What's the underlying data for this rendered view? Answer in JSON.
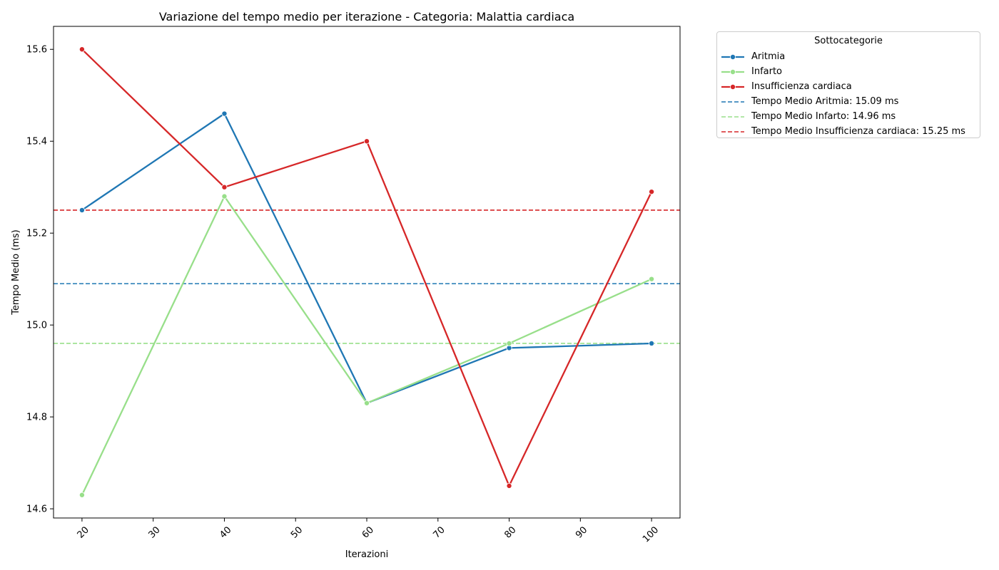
{
  "chart_data": {
    "type": "line",
    "title": "Variazione del tempo medio per iterazione - Categoria: Malattia cardiaca",
    "xlabel": "Iterazioni",
    "ylabel": "Tempo Medio (ms)",
    "xlim": [
      16,
      104
    ],
    "ylim": [
      14.58,
      15.65
    ],
    "xticks": [
      20,
      30,
      40,
      50,
      60,
      70,
      80,
      90,
      100
    ],
    "yticks": [
      14.6,
      14.8,
      15.0,
      15.2,
      15.4,
      15.6
    ],
    "ytick_labels": [
      "14.6",
      "14.8",
      "15.0",
      "15.2",
      "15.4",
      "15.6"
    ],
    "x": [
      20,
      40,
      60,
      80,
      100
    ],
    "series": [
      {
        "name": "Aritmia",
        "color": "#1f77b4",
        "values": [
          15.25,
          15.46,
          14.83,
          14.95,
          14.96
        ]
      },
      {
        "name": "Infarto",
        "color": "#98df8a",
        "values": [
          14.63,
          15.28,
          14.83,
          14.96,
          15.1
        ]
      },
      {
        "name": "Insufficienza cardiaca",
        "color": "#d62728",
        "values": [
          15.6,
          15.3,
          15.4,
          14.65,
          15.29
        ]
      }
    ],
    "reference_lines": [
      {
        "name": "Tempo Medio Aritmia: 15.09 ms",
        "color": "#1f77b4",
        "value": 15.09
      },
      {
        "name": "Tempo Medio Infarto: 14.96 ms",
        "color": "#98df8a",
        "value": 14.96
      },
      {
        "name": "Tempo Medio Insufficienza cardiaca: 15.25 ms",
        "color": "#d62728",
        "value": 15.25
      }
    ],
    "legend": {
      "title": "Sottocategorie",
      "placement": "outside-top-right"
    },
    "grid": false
  }
}
